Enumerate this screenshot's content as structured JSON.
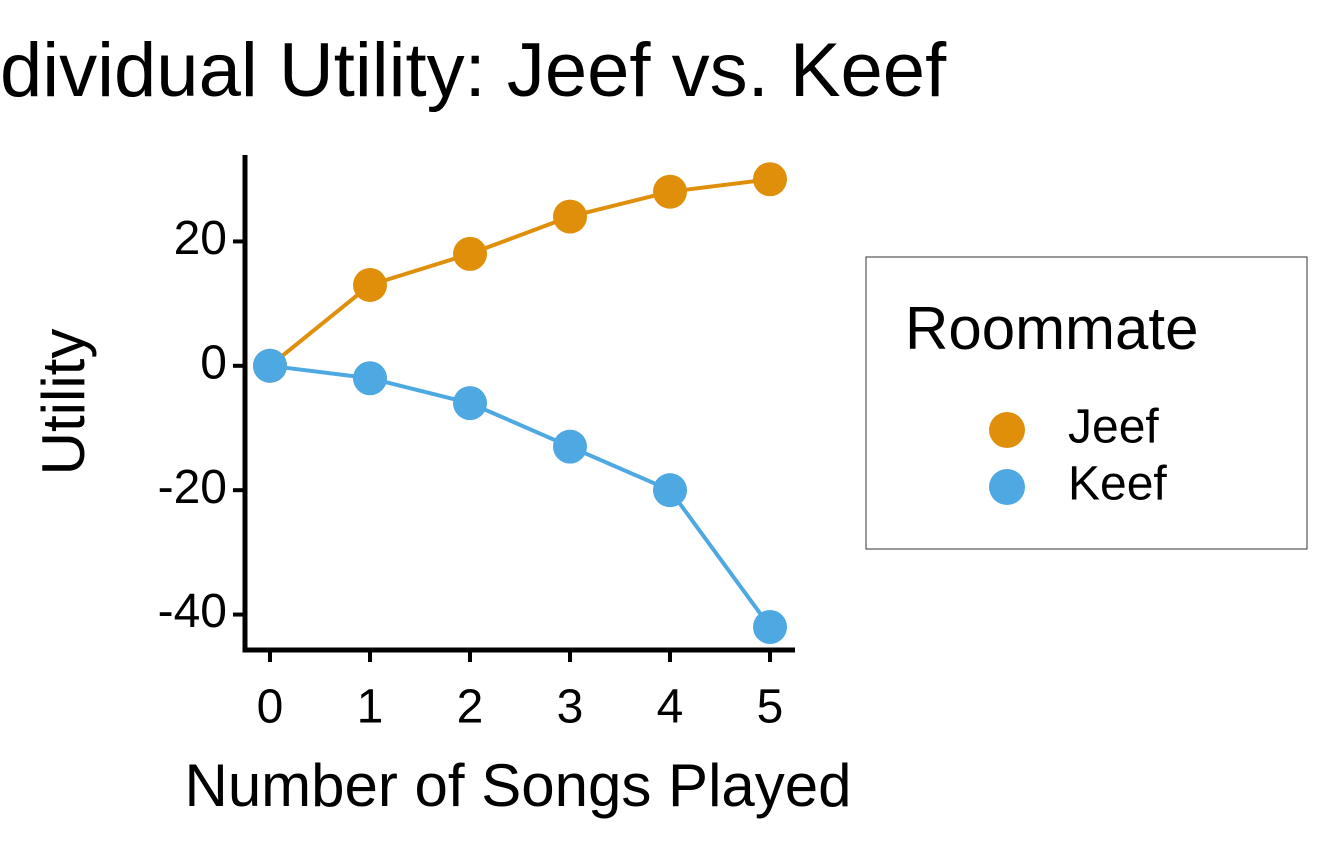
{
  "chart_data": {
    "type": "line",
    "title": "dividual Utility: Jeef vs. Keef",
    "x_label": "Number of Songs Played",
    "y_label": "Utility",
    "x": [
      0,
      1,
      2,
      3,
      4,
      5
    ],
    "series": [
      {
        "name": "Jeef",
        "color": "#E08F0B",
        "values": [
          0,
          13,
          18,
          24,
          28,
          30
        ]
      },
      {
        "name": "Keef",
        "color": "#4EA8E2",
        "values": [
          0,
          -2,
          -6,
          -13,
          -20,
          -42
        ]
      }
    ],
    "xlim": [
      -0.25,
      5.25
    ],
    "xticks": [
      0,
      1,
      2,
      3,
      4,
      5
    ],
    "ylim": [
      -45.7,
      33.9
    ],
    "yticks": [
      -40,
      -20,
      0,
      20
    ],
    "legend_title": "Roommate",
    "legend": "right"
  }
}
